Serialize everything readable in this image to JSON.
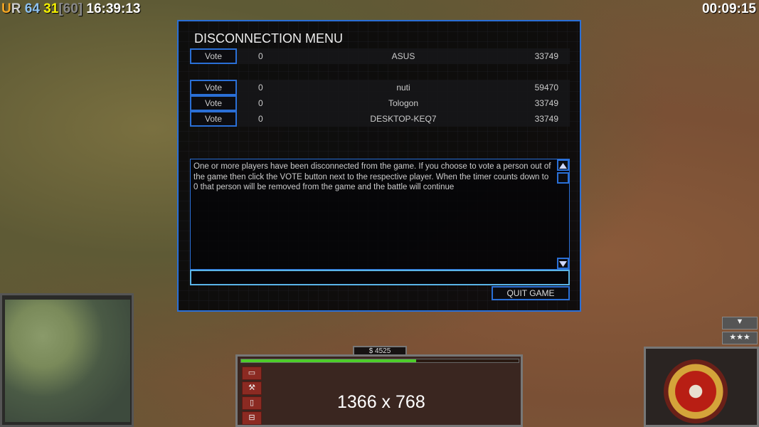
{
  "hud": {
    "fps_prefix_u": "U",
    "fps_prefix_r": "R",
    "fps_a": "64",
    "fps_b": "31",
    "fps_c": "[60]",
    "clock": "16:39:13",
    "game_timer": "00:09:15"
  },
  "dialog": {
    "title": "DISCONNECTION MENU",
    "players": [
      {
        "vote_label": "Vote",
        "votes": "0",
        "name": "ASUS",
        "ping": "33749"
      },
      {
        "vote_label": "Vote",
        "votes": "0",
        "name": "nuti",
        "ping": "59470"
      },
      {
        "vote_label": "Vote",
        "votes": "0",
        "name": "Tologon",
        "ping": "33749"
      },
      {
        "vote_label": "Vote",
        "votes": "0",
        "name": "DESKTOP-KEQ7",
        "ping": "33749"
      }
    ],
    "message": "One or more players have been disconnected from the game. If you choose to vote a person out of the game then click the VOTE button next to the respective player. When the timer counts down to 0 that person will be removed from the game and the battle will continue",
    "chat_value": "",
    "quit_label": "QUIT GAME"
  },
  "command_bar": {
    "money": "$ 4525",
    "power_percent": 63,
    "resolution_text": "1366 x 768"
  },
  "colors": {
    "accent": "#2a6fd6",
    "power": "#4ecc2a"
  }
}
